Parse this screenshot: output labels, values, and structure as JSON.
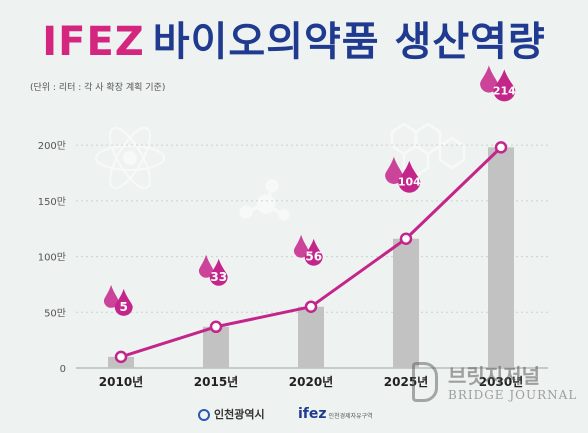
{
  "header": {
    "title_brand": "IFEZ",
    "title_rest": "바이오의약품 생산역량",
    "subtitle": "(단위 : 리터 : 각 사 확장 계획 기준)"
  },
  "footer": {
    "left_logo_text": "인천광역시",
    "right_logo_text": "ifez",
    "right_logo_sub": "인천경제자유구역"
  },
  "watermark": {
    "korean": "브릿지저널",
    "english": "BRIDGE JOURNAL"
  },
  "colors": {
    "brand_pink": "#d4267f",
    "brand_blue": "#1f3a8f",
    "bar_gray": "#c2c2c2",
    "line_magenta": "#c4258a"
  },
  "chart_data": {
    "type": "bar",
    "categories": [
      "2010년",
      "2015년",
      "2020년",
      "2025년",
      "2030년"
    ],
    "values": [
      10,
      37,
      55,
      116,
      198
    ],
    "line_values": [
      5,
      33,
      56,
      104,
      214
    ],
    "line_points": [
      10,
      37,
      55,
      116,
      198
    ],
    "data_labels": [
      "5",
      "33",
      "56",
      "104",
      "214"
    ],
    "title": "",
    "xlabel": "",
    "ylabel": "",
    "ylim": [
      0,
      210
    ],
    "yticks": [
      0,
      50,
      100,
      150,
      200
    ],
    "ytick_labels": [
      "0",
      "50만",
      "100만",
      "150만",
      "200만"
    ],
    "grid": true
  }
}
